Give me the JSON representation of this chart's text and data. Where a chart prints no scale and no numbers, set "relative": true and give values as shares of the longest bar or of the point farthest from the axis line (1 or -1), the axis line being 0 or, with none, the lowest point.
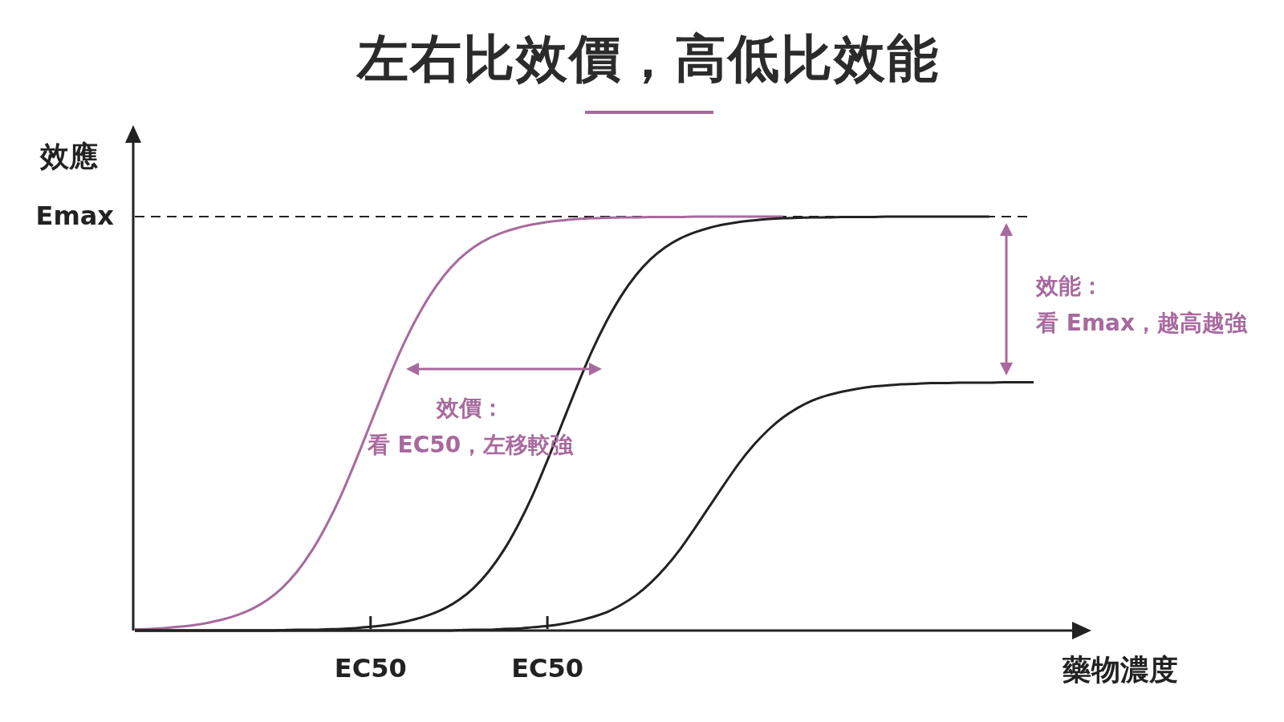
{
  "chart_data": {
    "type": "line",
    "title": "左右比效價，高低比效能",
    "xlabel": "藥物濃度",
    "ylabel": "效應",
    "relative": true,
    "marker": "none",
    "categories": [
      null,
      null,
      null,
      null,
      null,
      null,
      null,
      null,
      null,
      null,
      null,
      null,
      null,
      null,
      null,
      null,
      "EC50",
      null,
      null,
      null,
      null,
      null,
      null,
      null,
      null,
      null,
      null,
      null,
      "EC50",
      null,
      null,
      null,
      null,
      null,
      null,
      null,
      null,
      null,
      null,
      null,
      null,
      null,
      null,
      null,
      null,
      null,
      null,
      null,
      null,
      null,
      null,
      null,
      null,
      null,
      null,
      null,
      null,
      null,
      null,
      null,
      null,
      null
    ],
    "series": [
      {
        "color": "#a8699e",
        "values": [
          0.003,
          0.004,
          0.006,
          0.009,
          0.013,
          0.019,
          0.027,
          0.038,
          0.053,
          0.074,
          0.103,
          0.142,
          0.192,
          0.254,
          0.327,
          0.411,
          0.5,
          0.589,
          0.673,
          0.746,
          0.808,
          0.858,
          0.897,
          0.926,
          0.947,
          0.962,
          0.973,
          0.981,
          0.987,
          0.991,
          0.994,
          0.996,
          0.997,
          0.998,
          0.998,
          0.999,
          0.999,
          0.999,
          1,
          1,
          1,
          1,
          1,
          1,
          1,
          null,
          null,
          null,
          null,
          null,
          null,
          null,
          null,
          null,
          null,
          null,
          null,
          null,
          null,
          null,
          null,
          null
        ]
      },
      {
        "color": "#222222",
        "values": [
          0,
          0,
          0,
          0,
          0,
          0,
          0,
          0,
          0,
          0,
          0.001,
          0.002,
          0.002,
          0.003,
          0.004,
          0.006,
          0.009,
          0.013,
          0.019,
          0.027,
          0.038,
          0.053,
          0.074,
          0.103,
          0.142,
          0.192,
          0.254,
          0.327,
          0.411,
          0.5,
          0.589,
          0.673,
          0.746,
          0.808,
          0.858,
          0.897,
          0.926,
          0.947,
          0.962,
          0.973,
          0.981,
          0.987,
          0.991,
          0.994,
          0.996,
          0.997,
          0.998,
          0.998,
          0.999,
          0.999,
          0.999,
          1,
          1,
          1,
          1,
          1,
          1,
          1,
          1,
          null,
          null,
          null
        ]
      },
      {
        "color": "#222222",
        "values": [
          0,
          0,
          0,
          0,
          0,
          0,
          0,
          0,
          0,
          0,
          0,
          0,
          0,
          0,
          0,
          0,
          0,
          0,
          0,
          0,
          0,
          0,
          0.001,
          0.002,
          0.002,
          0.004,
          0.005,
          0.008,
          0.011,
          0.016,
          0.023,
          0.032,
          0.044,
          0.062,
          0.085,
          0.115,
          0.152,
          0.196,
          0.247,
          0.3,
          0.353,
          0.404,
          0.448,
          0.485,
          0.515,
          0.538,
          0.556,
          0.568,
          0.577,
          0.584,
          0.589,
          0.592,
          0.595,
          0.596,
          0.598,
          0.598,
          0.599,
          0.599,
          0.599,
          0.6,
          0.6,
          0.6
        ]
      }
    ],
    "ref_lines": [
      {
        "axis": "y",
        "value": 1,
        "label": "Emax",
        "line_style": "dashed"
      }
    ],
    "annotations": [
      "效價：",
      "看 EC50，左移較強",
      "效能：",
      "看 Emax，越高越強"
    ]
  }
}
